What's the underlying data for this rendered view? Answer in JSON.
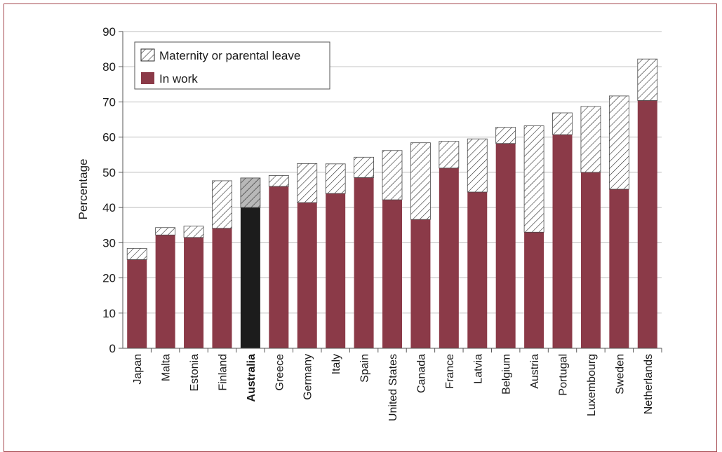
{
  "colors": {
    "in_work": "#8b3a48",
    "highlight": "#1c1c1c",
    "leave_hatch": "#2a2a2a",
    "leave_highlight_fill": "#b8b8b8",
    "gridline": "#bdbdbd",
    "frame": "#a5484f"
  },
  "chart_data": {
    "type": "bar",
    "stacked": true,
    "ylabel": "Percentage",
    "ylim": [
      0,
      90
    ],
    "yticks": [
      0,
      10,
      20,
      30,
      40,
      50,
      60,
      70,
      80,
      90
    ],
    "grid": true,
    "legend_position": "top-left",
    "highlight_category": "Australia",
    "categories": [
      "Japan",
      "Malta",
      "Estonia",
      "Finland",
      "Australia",
      "Greece",
      "Germany",
      "Italy",
      "Spain",
      "United States",
      "Canada",
      "France",
      "Latvia",
      "Belgium",
      "Austria",
      "Portugal",
      "Luxembourg",
      "Sweden",
      "Netherlands"
    ],
    "series": [
      {
        "name": "In work",
        "values": [
          25.2,
          32.2,
          31.5,
          34.1,
          40.0,
          46.0,
          41.4,
          44.0,
          48.5,
          42.2,
          36.6,
          51.2,
          44.4,
          58.2,
          33.0,
          60.7,
          50.0,
          45.2,
          70.4
        ]
      },
      {
        "name": "Maternity or parental leave",
        "values": [
          3.2,
          2.1,
          3.2,
          13.5,
          8.4,
          3.1,
          11.1,
          8.4,
          5.8,
          14.0,
          21.8,
          7.6,
          15.1,
          4.6,
          30.2,
          6.2,
          18.7,
          26.5,
          11.8
        ]
      }
    ]
  }
}
